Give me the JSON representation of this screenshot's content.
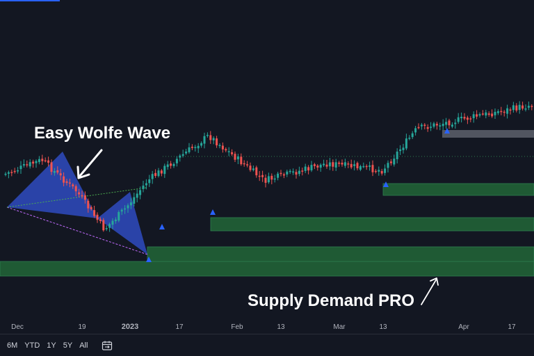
{
  "annotations": {
    "wolfe_label": "Easy Wolfe Wave",
    "supply_demand_label": "Supply Demand PRO"
  },
  "range_buttons": [
    "6M",
    "YTD",
    "1Y",
    "5Y",
    "All"
  ],
  "icons": {
    "date_range": "calendar-range-icon"
  },
  "colors": {
    "background": "#131722",
    "up_candle": "#26a69a",
    "down_candle": "#ef5350",
    "wolfe_fill": "#2f4bbf",
    "zone_fill": "#1f5a34",
    "zone_border": "#2e7d4f",
    "overhead_zone": "#5d606b",
    "signal_arrow": "#2962ff",
    "axis_text": "#b2b5be"
  },
  "chart_data": {
    "type": "candlestick",
    "x_axis_ticks": [
      "Dec",
      "19",
      "2023",
      "17",
      "Feb",
      "13",
      "Mar",
      "13",
      "Apr",
      "17"
    ],
    "price_path_approx": [
      {
        "date": "early Dec",
        "close": 250
      },
      {
        "date": "mid Dec",
        "close": 230
      },
      {
        "date": "late Dec",
        "close": 275
      },
      {
        "date": "early Jan",
        "close": 330
      },
      {
        "date": "mid Jan",
        "close": 300
      },
      {
        "date": "early Feb",
        "close": 260
      },
      {
        "date": "mid Feb",
        "close": 195
      },
      {
        "date": "late Feb",
        "close": 260
      },
      {
        "date": "early Mar",
        "close": 235
      },
      {
        "date": "mid Mar",
        "close": 245
      },
      {
        "date": "late Mar",
        "close": 185
      },
      {
        "date": "mid Apr",
        "close": 150
      }
    ],
    "indicators": [
      "Easy Wolfe Wave",
      "Supply Demand PRO"
    ],
    "demand_zones": 4,
    "supply_zones": 1
  }
}
